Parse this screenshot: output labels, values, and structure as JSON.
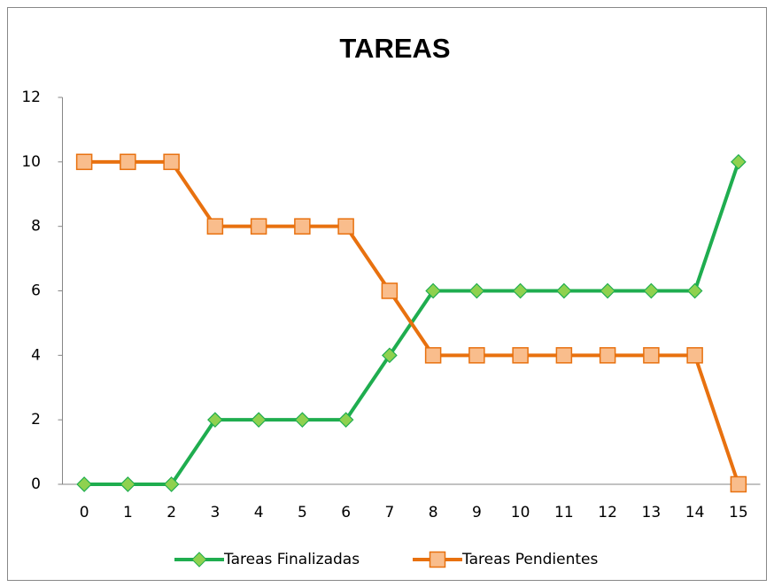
{
  "chart_data": {
    "type": "line",
    "title": "TAREAS",
    "categories": [
      0,
      1,
      2,
      3,
      4,
      5,
      6,
      7,
      8,
      9,
      10,
      11,
      12,
      13,
      14,
      15
    ],
    "series": [
      {
        "name": "Tareas Finalizadas",
        "color": "#1fad4f",
        "marker": "diamond",
        "marker_color": "#8fd14f",
        "values": [
          0,
          0,
          0,
          2,
          2,
          2,
          2,
          4,
          6,
          6,
          6,
          6,
          6,
          6,
          6,
          10
        ]
      },
      {
        "name": "Tareas Pendientes",
        "color": "#e8710f",
        "marker": "square",
        "marker_color": "#f9bd8c",
        "values": [
          10,
          10,
          10,
          8,
          8,
          8,
          8,
          6,
          4,
          4,
          4,
          4,
          4,
          4,
          4,
          0
        ]
      }
    ],
    "ylim": [
      0,
      12
    ],
    "yticks": [
      0,
      2,
      4,
      6,
      8,
      10,
      12
    ],
    "grid": false,
    "legend": "bottom"
  }
}
